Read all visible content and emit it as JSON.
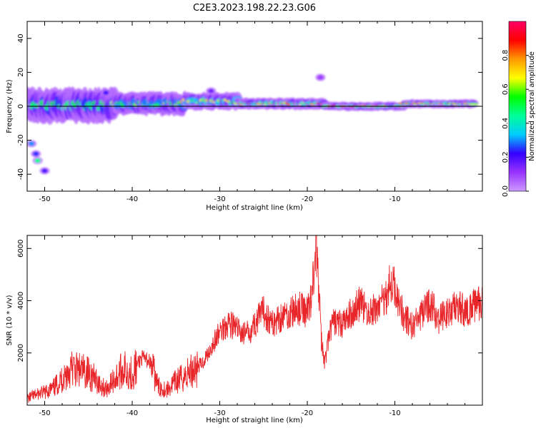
{
  "figure": {
    "title": "C2E3.2023.198.22.23.G06"
  },
  "colors": {
    "snr_line": "#e8262a",
    "zero_line": "#000000"
  },
  "chart_data": [
    {
      "type": "heatmap",
      "xlabel": "Height of straight line (km)",
      "ylabel": "Frequency (Hz)",
      "xlim": [
        -52,
        0
      ],
      "ylim": [
        -50,
        50
      ],
      "xticks": [
        -50,
        -40,
        -30,
        -20,
        -10
      ],
      "yticks": [
        -40,
        -20,
        0,
        20,
        40
      ],
      "ytick_labels": [
        "-40",
        "-20",
        "0",
        "20",
        "40"
      ],
      "grid": false,
      "colorbar": {
        "label": "Normalized spectral amplitude",
        "ticks": [
          0.0,
          0.2,
          0.4,
          0.6,
          0.8
        ],
        "tick_labels": [
          "0.0",
          "0.2",
          "0.4",
          "0.6",
          "0.8"
        ],
        "colormap": [
          "#cc99ff",
          "#9933ff",
          "#3300ff",
          "#00ccff",
          "#00ff99",
          "#00ff00",
          "#ffff00",
          "#ff9900",
          "#ff0000",
          "#ff0066"
        ]
      },
      "ridge": {
        "segments": [
          {
            "x_start": -52,
            "x_end": -42,
            "frequency": 0.5,
            "amplitude": 0.55,
            "spread": 6
          },
          {
            "x_start": -42,
            "x_end": -34,
            "frequency": 1.5,
            "amplitude": 0.65,
            "spread": 4
          },
          {
            "x_start": -34,
            "x_end": -28,
            "frequency": 3.0,
            "amplitude": 0.75,
            "spread": 3
          },
          {
            "x_start": -28,
            "x_end": -18,
            "frequency": 1.5,
            "amplitude": 0.85,
            "spread": 2
          },
          {
            "x_start": -18,
            "x_end": -9,
            "frequency": 0.0,
            "amplitude": 0.9,
            "spread": 1.5
          },
          {
            "x_start": -9,
            "x_end": -1,
            "frequency": 1.5,
            "amplitude": 0.85,
            "spread": 1.5
          }
        ],
        "blobs": [
          {
            "x": -51.5,
            "frequency": -22,
            "amplitude": 0.3
          },
          {
            "x": -51,
            "frequency": -28,
            "amplitude": 0.25
          },
          {
            "x": -50.8,
            "frequency": -32,
            "amplitude": 0.45
          },
          {
            "x": -50,
            "frequency": -38,
            "amplitude": 0.2
          },
          {
            "x": -43,
            "frequency": 8,
            "amplitude": 0.2
          },
          {
            "x": -31,
            "frequency": 9,
            "amplitude": 0.15
          },
          {
            "x": -18.5,
            "frequency": 17,
            "amplitude": 0.1
          }
        ]
      }
    },
    {
      "type": "line",
      "xlabel": "Height of straight line (km)",
      "ylabel": "SNR (10 * v/v)",
      "xlim": [
        -52,
        0
      ],
      "ylim": [
        0,
        6500
      ],
      "xticks": [
        -50,
        -40,
        -30,
        -20,
        -10
      ],
      "yticks": [
        2000,
        4000,
        6000
      ],
      "grid": false,
      "series": [
        {
          "x": [
            -52,
            -51,
            -50,
            -49,
            -48,
            -47,
            -46,
            -45,
            -44,
            -43,
            -42,
            -41,
            -40,
            -39,
            -38,
            -37,
            -36,
            -35,
            -34,
            -33,
            -32,
            -31,
            -30,
            -29,
            -28,
            -27,
            -26,
            -25,
            -24,
            -23,
            -22,
            -21,
            -20,
            -19.5,
            -19,
            -18.7,
            -18.4,
            -18,
            -17.5,
            -17,
            -16,
            -15,
            -14,
            -13,
            -12,
            -11,
            -10.5,
            -10,
            -9,
            -8,
            -7,
            -6,
            -5,
            -4,
            -3,
            -2,
            -1,
            0
          ],
          "y": [
            250,
            400,
            500,
            650,
            1000,
            1400,
            1300,
            1250,
            900,
            600,
            1000,
            1400,
            1200,
            1800,
            1700,
            700,
            600,
            900,
            1100,
            1400,
            1600,
            2200,
            2800,
            3200,
            2900,
            2700,
            3100,
            3600,
            3100,
            3400,
            3500,
            3700,
            3600,
            4200,
            6200,
            4500,
            2500,
            1600,
            2700,
            3200,
            3100,
            3500,
            3900,
            3500,
            3700,
            4200,
            4700,
            4500,
            3400,
            3000,
            3400,
            3900,
            3300,
            3500,
            3800,
            3600,
            3800,
            3900
          ]
        }
      ]
    }
  ]
}
